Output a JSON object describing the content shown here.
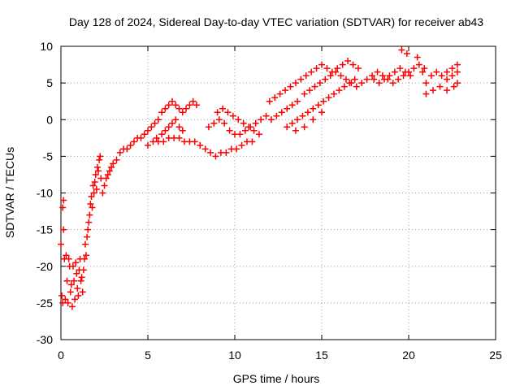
{
  "chart_data": {
    "type": "scatter",
    "title": "Day 128 of 2024, Sidereal Day-to-day VTEC variation (SDTVAR) for receiver ab43",
    "xlabel": "GPS time / hours",
    "ylabel": "SDTVAR / TECUs",
    "xlim": [
      0,
      25
    ],
    "ylim": [
      -30,
      10
    ],
    "xticks": [
      "0",
      "5",
      "10",
      "15",
      "20",
      "25"
    ],
    "yticks": [
      "-30",
      "-25",
      "-20",
      "-15",
      "-10",
      "-5",
      "0",
      "5",
      "10"
    ],
    "grid": true,
    "marker": "+",
    "color": "#ff0000",
    "series": [
      {
        "values": [
          [
            0.0,
            -17.0
          ],
          [
            0.05,
            -24.0
          ],
          [
            0.1,
            -25.0
          ],
          [
            0.1,
            -12.0
          ],
          [
            0.15,
            -15.0
          ],
          [
            0.15,
            -11.0
          ],
          [
            0.2,
            -19.0
          ],
          [
            0.25,
            -24.5
          ],
          [
            0.3,
            -18.5
          ],
          [
            0.35,
            -22.0
          ],
          [
            0.4,
            -25.0
          ],
          [
            0.45,
            -19.0
          ],
          [
            0.5,
            -20.0
          ],
          [
            0.55,
            -23.5
          ],
          [
            0.6,
            -22.5
          ],
          [
            0.65,
            -25.5
          ],
          [
            0.7,
            -20.0
          ],
          [
            0.75,
            -22.0
          ],
          [
            0.8,
            -24.5
          ],
          [
            0.85,
            -19.5
          ],
          [
            0.9,
            -21.0
          ],
          [
            0.95,
            -23.0
          ],
          [
            1.0,
            -24.0
          ],
          [
            1.05,
            -20.5
          ],
          [
            1.1,
            -19.0
          ],
          [
            1.15,
            -22.0
          ],
          [
            1.2,
            -21.5
          ],
          [
            1.25,
            -23.5
          ],
          [
            1.3,
            -20.5
          ],
          [
            1.35,
            -19.0
          ],
          [
            1.4,
            -17.0
          ],
          [
            1.45,
            -18.5
          ],
          [
            1.5,
            -16.0
          ],
          [
            1.55,
            -15.0
          ],
          [
            1.6,
            -14.0
          ],
          [
            1.65,
            -13.0
          ],
          [
            1.7,
            -11.5
          ],
          [
            1.75,
            -10.5
          ],
          [
            1.8,
            -12.0
          ],
          [
            1.85,
            -9.0
          ],
          [
            1.9,
            -10.0
          ],
          [
            1.95,
            -8.5
          ],
          [
            2.0,
            -7.5
          ],
          [
            2.05,
            -9.5
          ],
          [
            2.1,
            -6.5
          ],
          [
            2.15,
            -7.0
          ],
          [
            2.2,
            -5.5
          ],
          [
            2.25,
            -5.0
          ],
          [
            2.3,
            -8.0
          ],
          [
            2.4,
            -10.0
          ],
          [
            2.5,
            -9.0
          ],
          [
            2.6,
            -8.0
          ],
          [
            2.7,
            -7.5
          ],
          [
            2.8,
            -7.0
          ],
          [
            2.9,
            -6.5
          ],
          [
            3.0,
            -6.0
          ],
          [
            3.2,
            -5.5
          ],
          [
            3.4,
            -4.5
          ],
          [
            3.6,
            -4.0
          ],
          [
            3.8,
            -4.0
          ],
          [
            4.0,
            -3.5
          ],
          [
            4.2,
            -3.0
          ],
          [
            4.4,
            -2.5
          ],
          [
            4.6,
            -2.5
          ],
          [
            4.8,
            -2.0
          ],
          [
            5.0,
            -1.5
          ],
          [
            5.2,
            -1.0
          ],
          [
            5.4,
            -0.5
          ],
          [
            5.6,
            0.0
          ],
          [
            5.8,
            1.0
          ],
          [
            6.0,
            1.5
          ],
          [
            6.2,
            2.0
          ],
          [
            6.4,
            2.5
          ],
          [
            6.6,
            2.0
          ],
          [
            6.8,
            1.5
          ],
          [
            7.0,
            1.0
          ],
          [
            7.2,
            1.5
          ],
          [
            7.4,
            2.0
          ],
          [
            7.6,
            2.5
          ],
          [
            7.8,
            2.0
          ],
          [
            5.5,
            -2.5
          ],
          [
            5.8,
            -2.0
          ],
          [
            6.0,
            -1.5
          ],
          [
            6.2,
            -1.0
          ],
          [
            6.4,
            -0.5
          ],
          [
            6.6,
            0.0
          ],
          [
            6.8,
            -1.0
          ],
          [
            7.0,
            -1.5
          ],
          [
            5.0,
            -3.5
          ],
          [
            5.3,
            -3.0
          ],
          [
            5.6,
            -3.0
          ],
          [
            5.9,
            -3.0
          ],
          [
            6.2,
            -2.5
          ],
          [
            6.5,
            -2.5
          ],
          [
            6.8,
            -2.5
          ],
          [
            7.1,
            -3.0
          ],
          [
            7.4,
            -3.0
          ],
          [
            7.7,
            -3.0
          ],
          [
            8.0,
            -3.5
          ],
          [
            8.3,
            -4.0
          ],
          [
            8.6,
            -4.5
          ],
          [
            8.9,
            -5.0
          ],
          [
            9.2,
            -4.5
          ],
          [
            9.5,
            -4.5
          ],
          [
            9.8,
            -4.0
          ],
          [
            10.1,
            -4.0
          ],
          [
            10.4,
            -3.5
          ],
          [
            10.7,
            -3.0
          ],
          [
            11.0,
            -3.0
          ],
          [
            9.0,
            1.0
          ],
          [
            9.3,
            1.5
          ],
          [
            9.6,
            1.0
          ],
          [
            9.9,
            0.5
          ],
          [
            10.2,
            0.0
          ],
          [
            10.5,
            -0.5
          ],
          [
            10.8,
            -1.0
          ],
          [
            11.1,
            -1.5
          ],
          [
            11.4,
            -2.0
          ],
          [
            8.5,
            -1.0
          ],
          [
            8.8,
            -0.5
          ],
          [
            9.1,
            0.0
          ],
          [
            9.4,
            -0.5
          ],
          [
            9.7,
            -1.5
          ],
          [
            10.0,
            -2.0
          ],
          [
            10.3,
            -2.0
          ],
          [
            10.6,
            -1.5
          ],
          [
            10.9,
            -1.0
          ],
          [
            11.2,
            -0.5
          ],
          [
            11.5,
            0.0
          ],
          [
            11.8,
            0.5
          ],
          [
            12.1,
            0.0
          ],
          [
            12.4,
            0.5
          ],
          [
            12.7,
            1.0
          ],
          [
            13.0,
            1.5
          ],
          [
            13.3,
            2.0
          ],
          [
            13.6,
            2.5
          ],
          [
            12.0,
            2.5
          ],
          [
            12.3,
            3.0
          ],
          [
            12.6,
            3.5
          ],
          [
            12.9,
            4.0
          ],
          [
            13.2,
            4.5
          ],
          [
            13.5,
            5.0
          ],
          [
            13.8,
            5.5
          ],
          [
            14.1,
            6.0
          ],
          [
            14.4,
            6.5
          ],
          [
            14.7,
            7.0
          ],
          [
            15.0,
            7.5
          ],
          [
            15.3,
            7.0
          ],
          [
            15.6,
            6.5
          ],
          [
            15.9,
            7.0
          ],
          [
            16.2,
            7.5
          ],
          [
            16.5,
            8.0
          ],
          [
            16.8,
            7.5
          ],
          [
            17.1,
            7.0
          ],
          [
            13.0,
            -1.0
          ],
          [
            13.3,
            -0.5
          ],
          [
            13.6,
            0.0
          ],
          [
            13.9,
            0.5
          ],
          [
            14.2,
            1.0
          ],
          [
            14.5,
            1.5
          ],
          [
            14.8,
            2.0
          ],
          [
            15.1,
            2.5
          ],
          [
            15.4,
            3.0
          ],
          [
            15.7,
            3.5
          ],
          [
            16.0,
            4.0
          ],
          [
            16.3,
            4.5
          ],
          [
            16.6,
            5.0
          ],
          [
            16.9,
            5.5
          ],
          [
            14.0,
            3.5
          ],
          [
            14.3,
            4.0
          ],
          [
            14.6,
            4.5
          ],
          [
            14.9,
            5.0
          ],
          [
            15.2,
            5.5
          ],
          [
            15.5,
            6.0
          ],
          [
            15.8,
            6.5
          ],
          [
            16.1,
            6.0
          ],
          [
            16.4,
            5.5
          ],
          [
            16.7,
            5.0
          ],
          [
            17.0,
            4.5
          ],
          [
            17.3,
            5.0
          ],
          [
            17.6,
            5.5
          ],
          [
            17.9,
            6.0
          ],
          [
            18.2,
            6.5
          ],
          [
            18.5,
            6.0
          ],
          [
            18.8,
            5.5
          ],
          [
            19.1,
            5.0
          ],
          [
            19.4,
            5.5
          ],
          [
            19.7,
            6.0
          ],
          [
            20.0,
            6.5
          ],
          [
            20.3,
            7.0
          ],
          [
            20.6,
            7.5
          ],
          [
            20.9,
            7.0
          ],
          [
            18.0,
            5.5
          ],
          [
            18.3,
            5.0
          ],
          [
            18.6,
            5.5
          ],
          [
            18.9,
            6.0
          ],
          [
            19.2,
            6.5
          ],
          [
            19.5,
            7.0
          ],
          [
            19.8,
            6.5
          ],
          [
            20.1,
            6.0
          ],
          [
            19.6,
            9.5
          ],
          [
            19.9,
            9.0
          ],
          [
            20.5,
            8.5
          ],
          [
            20.8,
            6.5
          ],
          [
            21.0,
            5.0
          ],
          [
            21.3,
            6.0
          ],
          [
            21.6,
            6.5
          ],
          [
            21.9,
            6.0
          ],
          [
            22.2,
            5.5
          ],
          [
            22.5,
            6.0
          ],
          [
            22.8,
            6.5
          ],
          [
            22.8,
            7.5
          ],
          [
            22.5,
            7.0
          ],
          [
            22.2,
            6.5
          ],
          [
            21.0,
            3.5
          ],
          [
            21.4,
            4.0
          ],
          [
            21.8,
            4.5
          ],
          [
            22.2,
            4.0
          ],
          [
            22.6,
            4.5
          ],
          [
            22.8,
            5.0
          ],
          [
            13.5,
            -1.5
          ],
          [
            14.0,
            -1.0
          ],
          [
            14.5,
            0.0
          ],
          [
            15.0,
            1.0
          ]
        ]
      }
    ]
  }
}
